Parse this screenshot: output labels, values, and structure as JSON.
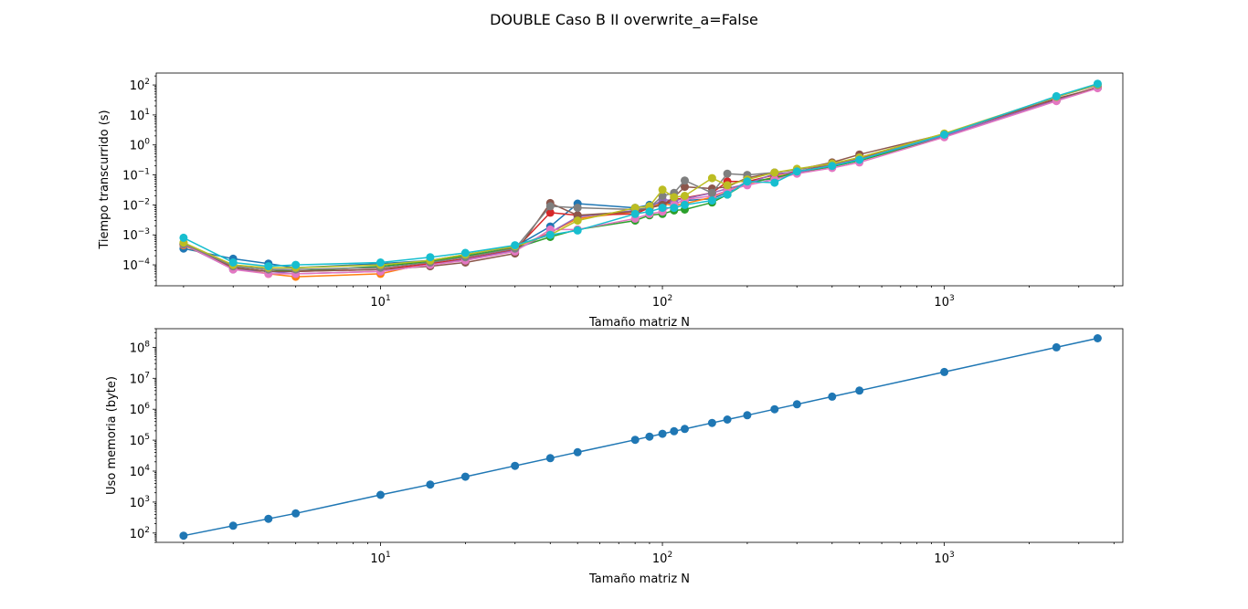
{
  "figure": {
    "title": "DOUBLE Caso B II overwrite_a=False"
  },
  "chart_data": [
    {
      "type": "line",
      "xlabel": "Tamaño matriz N",
      "ylabel": "Tiempo transcurrido (s)",
      "xscale": "log",
      "yscale": "log",
      "xlim": [
        1.6,
        4300
      ],
      "ylim": [
        2e-05,
        250
      ],
      "xticks": [
        {
          "v": 10,
          "b": "10",
          "e": "1"
        },
        {
          "v": 100,
          "b": "10",
          "e": "2"
        },
        {
          "v": 1000,
          "b": "10",
          "e": "3"
        }
      ],
      "yticks": [
        {
          "v": 0.0001,
          "b": "10",
          "e": "−4"
        },
        {
          "v": 0.001,
          "b": "10",
          "e": "−3"
        },
        {
          "v": 0.01,
          "b": "10",
          "e": "−2"
        },
        {
          "v": 0.1,
          "b": "10",
          "e": "−1"
        },
        {
          "v": 1,
          "b": "10",
          "e": "0"
        },
        {
          "v": 10,
          "b": "10",
          "e": "1"
        },
        {
          "v": 100,
          "b": "10",
          "e": "2"
        }
      ],
      "grid": false,
      "x": [
        2,
        3,
        4,
        5,
        10,
        15,
        20,
        30,
        40,
        50,
        80,
        90,
        100,
        110,
        120,
        150,
        170,
        200,
        250,
        300,
        400,
        500,
        1000,
        2500,
        3500
      ],
      "series": [
        {
          "color": "#1f77b4",
          "values": [
            0.00035,
            0.00016,
            0.00011,
            8e-05,
            0.00011,
            0.00014,
            0.00022,
            0.0004,
            0.0019,
            0.011,
            0.008,
            0.01,
            0.012,
            0.011,
            0.014,
            0.016,
            0.026,
            0.06,
            0.075,
            0.12,
            0.19,
            0.3,
            1.9,
            30,
            80
          ]
        },
        {
          "color": "#ff7f0e",
          "values": [
            0.00045,
            8e-05,
            5e-05,
            4e-05,
            5e-05,
            0.00012,
            0.00018,
            0.00038,
            0.0012,
            0.0035,
            0.006,
            0.0085,
            0.011,
            0.0095,
            0.011,
            0.018,
            0.03,
            0.05,
            0.085,
            0.12,
            0.2,
            0.3,
            1.9,
            30,
            80
          ]
        },
        {
          "color": "#2ca02c",
          "values": [
            0.0005,
            9e-05,
            7e-05,
            6e-05,
            9e-05,
            0.00013,
            0.0002,
            0.00036,
            0.00085,
            0.0015,
            0.003,
            0.0045,
            0.005,
            0.0065,
            0.007,
            0.012,
            0.022,
            0.055,
            0.08,
            0.12,
            0.19,
            0.3,
            1.9,
            30,
            82
          ]
        },
        {
          "color": "#d62728",
          "values": [
            0.0005,
            8e-05,
            6e-05,
            6e-05,
            7e-05,
            0.00011,
            0.00016,
            0.00032,
            0.0055,
            0.0045,
            0.005,
            0.008,
            0.01,
            0.015,
            0.017,
            0.025,
            0.06,
            0.06,
            0.1,
            0.13,
            0.22,
            0.35,
            2.0,
            32,
            85
          ]
        },
        {
          "color": "#9467bd",
          "values": [
            0.00048,
            7e-05,
            6e-05,
            5e-05,
            6e-05,
            0.0001,
            0.00015,
            0.0003,
            0.0012,
            0.004,
            0.0065,
            0.008,
            0.015,
            0.014,
            0.016,
            0.025,
            0.035,
            0.05,
            0.11,
            0.12,
            0.21,
            0.33,
            2.0,
            31,
            82
          ]
        },
        {
          "color": "#8c564b",
          "values": [
            0.0005,
            8e-05,
            6e-05,
            6e-05,
            7e-05,
            9e-05,
            0.00012,
            0.00024,
            0.0115,
            0.0045,
            0.006,
            0.008,
            0.01,
            0.018,
            0.04,
            0.035,
            0.04,
            0.08,
            0.12,
            0.15,
            0.26,
            0.48,
            2.3,
            35,
            80
          ]
        },
        {
          "color": "#e377c2",
          "values": [
            0.0005,
            7e-05,
            5e-05,
            5e-05,
            6e-05,
            0.0001,
            0.00014,
            0.00028,
            0.0015,
            0.0015,
            0.0035,
            0.005,
            0.006,
            0.01,
            0.015,
            0.02,
            0.03,
            0.045,
            0.07,
            0.11,
            0.17,
            0.26,
            1.8,
            29,
            78
          ]
        },
        {
          "color": "#7f7f7f",
          "values": [
            0.0005,
            9e-05,
            7e-05,
            7e-05,
            8e-05,
            0.00012,
            0.00018,
            0.00035,
            0.009,
            0.008,
            0.007,
            0.008,
            0.02,
            0.025,
            0.065,
            0.025,
            0.11,
            0.1,
            0.12,
            0.15,
            0.23,
            0.38,
            2.3,
            40,
            100
          ]
        },
        {
          "color": "#bcbd22",
          "values": [
            0.00055,
            0.0001,
            8e-05,
            8e-05,
            0.0001,
            0.00014,
            0.00022,
            0.00042,
            0.001,
            0.003,
            0.008,
            0.009,
            0.032,
            0.018,
            0.02,
            0.078,
            0.045,
            0.07,
            0.12,
            0.16,
            0.24,
            0.38,
            2.4,
            40,
            105
          ]
        },
        {
          "color": "#17becf",
          "values": [
            0.0008,
            0.00012,
            9e-05,
            0.0001,
            0.00012,
            0.00018,
            0.00025,
            0.00045,
            0.001,
            0.0014,
            0.005,
            0.006,
            0.008,
            0.008,
            0.01,
            0.014,
            0.022,
            0.06,
            0.055,
            0.13,
            0.2,
            0.32,
            2.2,
            42,
            110
          ]
        }
      ]
    },
    {
      "type": "line",
      "xlabel": "Tamaño matriz N",
      "ylabel": "Uso memoria (byte)",
      "xscale": "log",
      "yscale": "log",
      "xlim": [
        1.6,
        4300
      ],
      "ylim": [
        50,
        400000000
      ],
      "xticks": [
        {
          "v": 10,
          "b": "10",
          "e": "1"
        },
        {
          "v": 100,
          "b": "10",
          "e": "2"
        },
        {
          "v": 1000,
          "b": "10",
          "e": "3"
        }
      ],
      "yticks": [
        {
          "v": 100,
          "b": "10",
          "e": "2"
        },
        {
          "v": 1000,
          "b": "10",
          "e": "3"
        },
        {
          "v": 10000,
          "b": "10",
          "e": "4"
        },
        {
          "v": 100000,
          "b": "10",
          "e": "5"
        },
        {
          "v": 1000000,
          "b": "10",
          "e": "6"
        },
        {
          "v": 10000000,
          "b": "10",
          "e": "7"
        },
        {
          "v": 100000000,
          "b": "10",
          "e": "8"
        }
      ],
      "grid": false,
      "x": [
        2,
        3,
        4,
        5,
        10,
        15,
        20,
        30,
        40,
        50,
        80,
        90,
        100,
        110,
        120,
        150,
        170,
        200,
        250,
        300,
        400,
        500,
        1000,
        2500,
        3500
      ],
      "series": [
        {
          "color": "#1f77b4",
          "values": [
            82,
            172,
            288,
            432,
            1712,
            3672,
            6592,
            14832,
            26272,
            40912,
            102592,
            130032,
            160432,
            194032,
            230832,
            360432,
            462832,
            640432,
            1000432,
            1440432,
            2560432,
            4000432,
            16000432,
            100000432,
            196000432
          ]
        }
      ]
    }
  ]
}
